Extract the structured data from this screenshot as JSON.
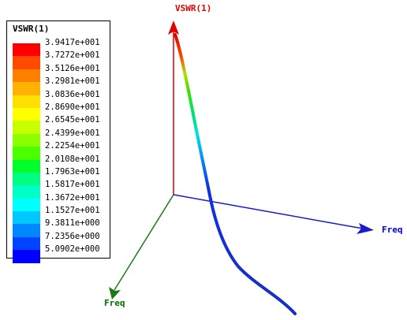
{
  "legend": {
    "title": "VSWR(1)",
    "entries": [
      {
        "value": "3.9417e+001",
        "color": "#ff0000"
      },
      {
        "value": "3.7272e+001",
        "color": "#ff4a00"
      },
      {
        "value": "3.5126e+001",
        "color": "#ff8000"
      },
      {
        "value": "3.2981e+001",
        "color": "#ffb300"
      },
      {
        "value": "3.0836e+001",
        "color": "#ffe000"
      },
      {
        "value": "2.8690e+001",
        "color": "#ffff00"
      },
      {
        "value": "2.6545e+001",
        "color": "#c8ff00"
      },
      {
        "value": "2.4399e+001",
        "color": "#8cff00"
      },
      {
        "value": "2.2254e+001",
        "color": "#4cff00"
      },
      {
        "value": "2.0108e+001",
        "color": "#00ff2a"
      },
      {
        "value": "1.7963e+001",
        "color": "#00ff80"
      },
      {
        "value": "1.5817e+001",
        "color": "#00ffc8"
      },
      {
        "value": "1.3672e+001",
        "color": "#00ffff"
      },
      {
        "value": "1.1527e+001",
        "color": "#00c8ff"
      },
      {
        "value": "9.3811e+000",
        "color": "#0088ff"
      },
      {
        "value": "7.2356e+000",
        "color": "#0044ff"
      },
      {
        "value": "5.0902e+000",
        "color": "#0000ff"
      }
    ]
  },
  "axes": {
    "vertical_label": "VSWR(1)",
    "vertical_color": "#e00000",
    "right_label": "Freq",
    "right_color": "#0000e0",
    "left_label": "Freq",
    "left_color": "#007000"
  }
}
